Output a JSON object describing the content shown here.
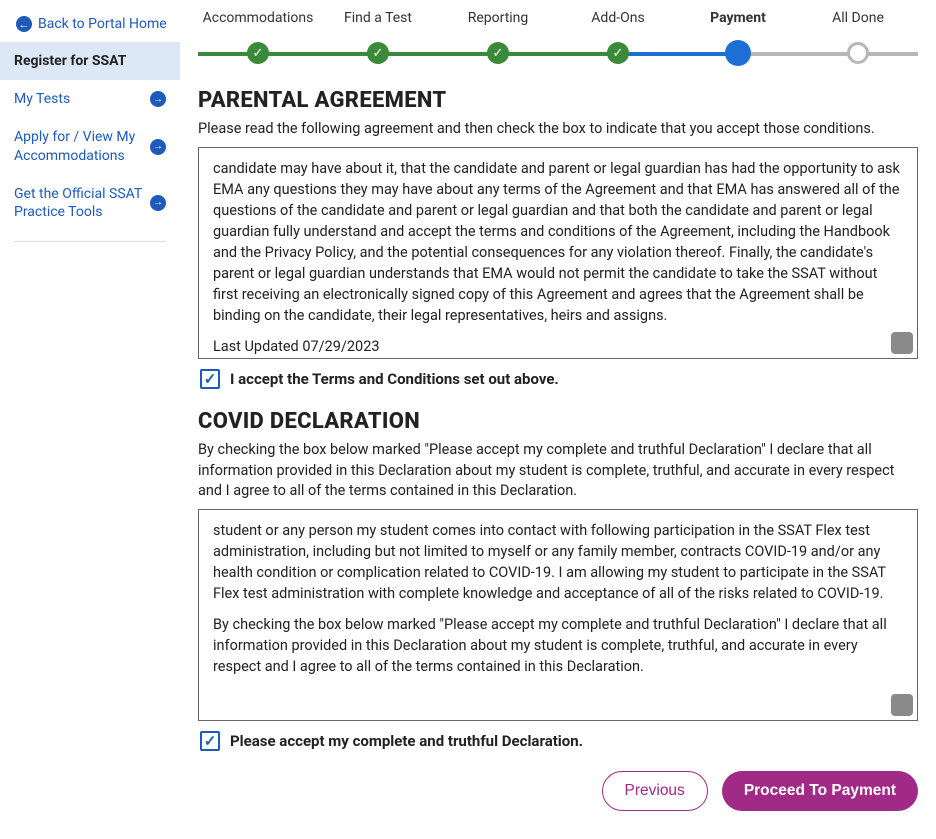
{
  "colors": {
    "link": "#1d5ab9",
    "stepDone": "#3b8a3b",
    "stepDoneTrack": "#3b8a3b",
    "stepCurrent": "#1d6fd6",
    "stepCurrentTrack": "#1d6fd6",
    "stepPendingTrack": "#b7b7b7",
    "primaryBtn": "#a12a87",
    "activeNavBg": "#dce8f5"
  },
  "sidebar": {
    "backLabel": "Back to Portal Home",
    "items": [
      {
        "label": "Register for SSAT",
        "active": true,
        "arrow": false
      },
      {
        "label": "My Tests",
        "active": false,
        "arrow": true
      },
      {
        "label": "Apply for / View My Accommodations",
        "active": false,
        "arrow": true
      },
      {
        "label": "Get the Official SSAT Practice Tools",
        "active": false,
        "arrow": true
      }
    ]
  },
  "stepper": {
    "steps": [
      {
        "label": "Accommodations",
        "state": "done"
      },
      {
        "label": "Find a Test",
        "state": "done"
      },
      {
        "label": "Reporting",
        "state": "done"
      },
      {
        "label": "Add-Ons",
        "state": "done"
      },
      {
        "label": "Payment",
        "state": "current"
      },
      {
        "label": "All Done",
        "state": "pending"
      }
    ],
    "segments": [
      "done",
      "done",
      "done",
      "done",
      "current",
      "pending"
    ]
  },
  "parental": {
    "title": "PARENTAL AGREEMENT",
    "intro": "Please read the following agreement and then check the box to indicate that you accept those conditions.",
    "body1": "candidate may have about it, that the candidate and parent or legal guardian has had the opportunity to ask EMA any questions they may have about any terms of the Agreement and that EMA has answered all of the questions of the candidate and parent or legal guardian and that both the candidate and parent or legal guardian fully understand and accept the terms and conditions of the Agreement, including the Handbook and the Privacy Policy, and the potential consequences for any violation thereof. Finally, the candidate's parent or legal guardian understands that EMA would not permit the candidate to take the SSAT without first receiving an electronically signed copy of this Agreement and agrees that the Agreement shall be binding on the candidate, their legal representatives, heirs and assigns.",
    "body2": "Last Updated 07/29/2023",
    "acceptLabel": "I accept the Terms and Conditions set out above.",
    "checked": true
  },
  "covid": {
    "title": "COVID DECLARATION",
    "intro": "By checking the box below marked \"Please accept my complete and truthful Declaration\" I declare that all information provided in this Declaration about my student is complete, truthful, and accurate in every respect and I agree to all of the terms contained in this Declaration.",
    "body1": "student or any person my student comes into contact with following participation in the SSAT Flex test administration, including but not limited to myself or any family member, contracts COVID-19 and/or any health condition or complication related to COVID-19. I am allowing my student to participate in the SSAT Flex test administration with complete knowledge and acceptance of all of the risks related to COVID-19.",
    "body2": "By checking the box below marked \"Please accept my complete and truthful Declaration\" I declare that all information provided in this Declaration about my student is complete, truthful, and accurate in every respect and I agree to all of the terms contained in this Declaration.",
    "acceptLabel": "Please accept my complete and truthful Declaration.",
    "checked": true
  },
  "footer": {
    "prev": "Previous",
    "next": "Proceed To Payment"
  }
}
